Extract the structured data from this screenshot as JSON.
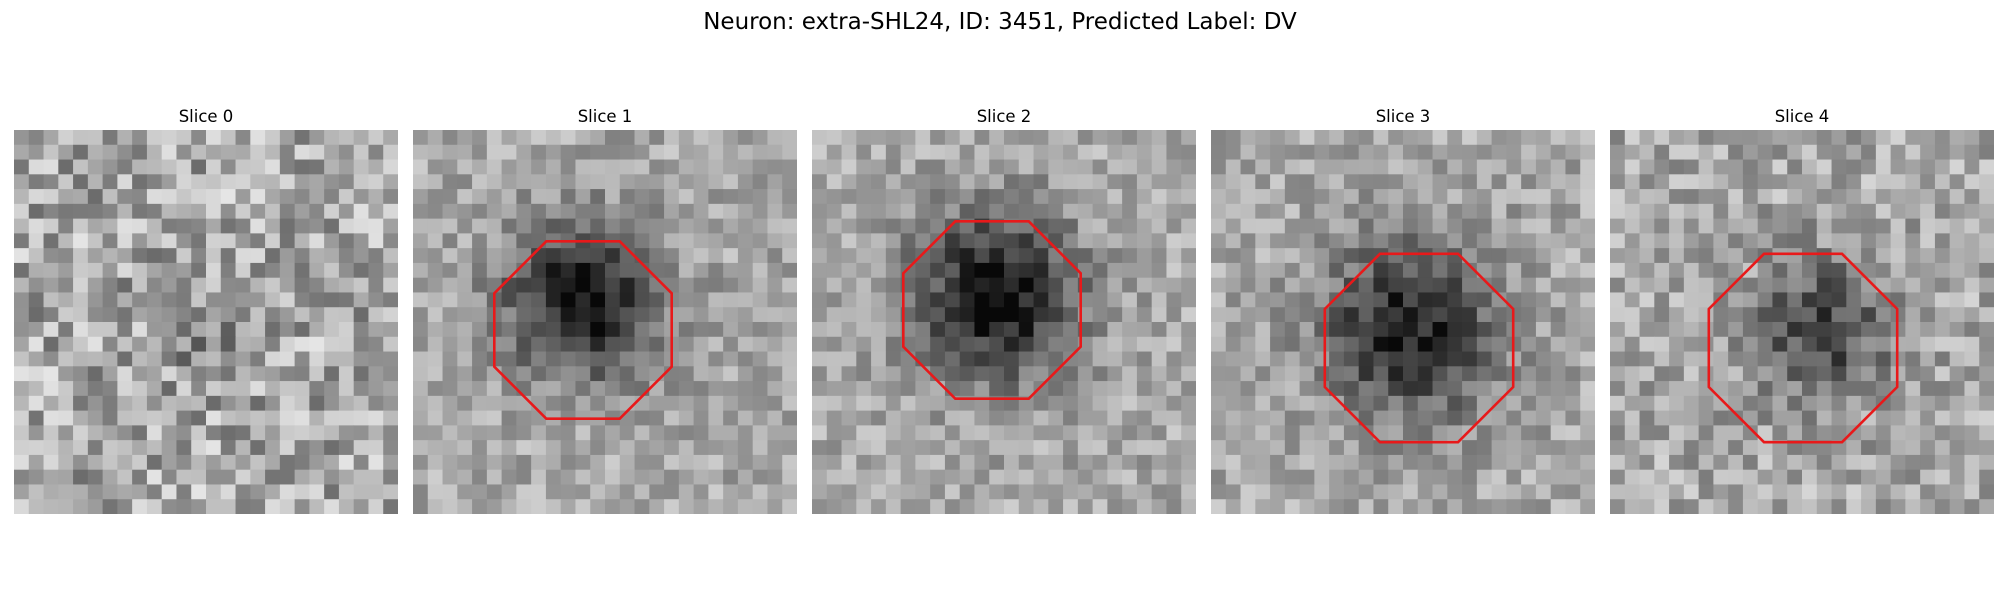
{
  "figure": {
    "suptitle": "Neuron: extra-SHL24, ID: 3451, Predicted Label: DV",
    "outline_color": "#e8191a",
    "slices": [
      {
        "title": "Slice 0",
        "has_outline": false
      },
      {
        "title": "Slice 1",
        "has_outline": true
      },
      {
        "title": "Slice 2",
        "has_outline": true
      },
      {
        "title": "Slice 3",
        "has_outline": true
      },
      {
        "title": "Slice 4",
        "has_outline": true
      }
    ]
  }
}
